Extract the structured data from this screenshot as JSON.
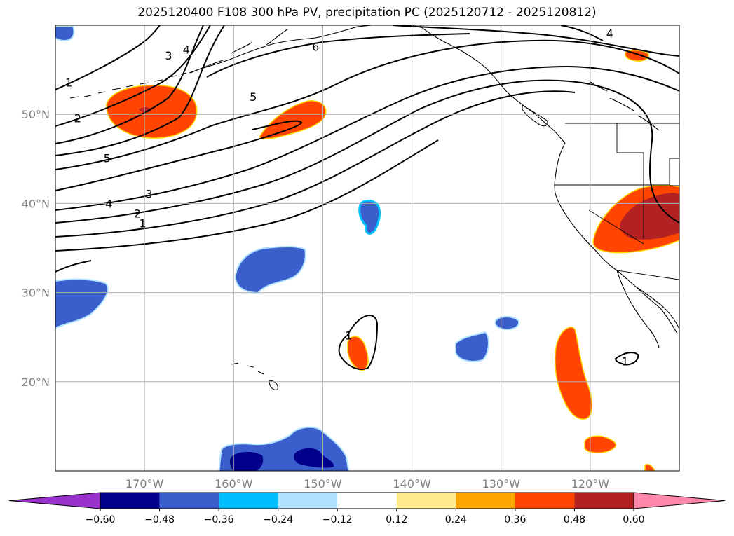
{
  "title": "2025120400 F108 300 hPa PV, precipitation PC (2025120712 - 2025120812)",
  "chart_data": {
    "type": "contour-map",
    "title": "2025120400 F108 300 hPa PV, precipitation PC (2025120712 - 2025120812)",
    "lon_range": [
      -180,
      -110
    ],
    "lat_range": [
      10,
      60
    ],
    "grid": true,
    "lon_ticks": [
      -170,
      -160,
      -150,
      -140,
      -130,
      -120
    ],
    "lon_tick_labels": [
      "170°W",
      "160°W",
      "150°W",
      "140°W",
      "130°W",
      "120°W"
    ],
    "lat_ticks": [
      20,
      30,
      40,
      50
    ],
    "lat_tick_labels": [
      "20°N",
      "30°N",
      "40°N",
      "50°N"
    ],
    "pv_contour_labels": [
      {
        "text": "1",
        "lon": -178.5,
        "lat": 53.6
      },
      {
        "text": "2",
        "lon": -177.5,
        "lat": 49.6
      },
      {
        "text": "3",
        "lon": -167.3,
        "lat": 56.6
      },
      {
        "text": "4",
        "lon": -165.3,
        "lat": 57.3
      },
      {
        "text": "5",
        "lon": -157.8,
        "lat": 52.0
      },
      {
        "text": "6",
        "lon": -150.8,
        "lat": 57.6
      },
      {
        "text": "4",
        "lon": -117.8,
        "lat": 59.1
      },
      {
        "text": "5",
        "lon": -174.2,
        "lat": 45.1
      },
      {
        "text": "4",
        "lon": -174.0,
        "lat": 40.0
      },
      {
        "text": "3",
        "lon": -169.5,
        "lat": 41.1
      },
      {
        "text": "2",
        "lon": -170.8,
        "lat": 38.9
      },
      {
        "text": "1",
        "lon": -170.2,
        "lat": 37.8
      },
      {
        "text": "1",
        "lon": -147.1,
        "lat": 25.2
      },
      {
        "text": "1",
        "lon": -116.1,
        "lat": 22.3
      }
    ],
    "colorbar": {
      "levels": [
        -0.6,
        -0.48,
        -0.36,
        -0.24,
        -0.12,
        0.12,
        0.24,
        0.36,
        0.48,
        0.6
      ],
      "tick_labels": [
        "−0.60",
        "−0.48",
        "−0.36",
        "−0.24",
        "−0.12",
        "0.12",
        "0.24",
        "0.36",
        "0.48",
        "0.60"
      ],
      "colors": [
        "#9932cc",
        "#00008b",
        "#3a5fcd",
        "#00bfff",
        "#b0e2ff",
        "#ffffff",
        "#ffeb8c",
        "#ffa500",
        "#ff4500",
        "#b22222",
        "#ff88aa"
      ],
      "extend": "both"
    },
    "precip_anomalies": [
      {
        "lon": -171.0,
        "lat": 50.3,
        "value": 0.4
      },
      {
        "lon": -156.0,
        "lat": 49.4,
        "value": 0.4
      },
      {
        "lon": -115.0,
        "lat": 38.0,
        "value": 0.5
      },
      {
        "lon": -145.8,
        "lat": 23.0,
        "value": 0.4
      },
      {
        "lon": -121.8,
        "lat": 20.5,
        "value": 0.4
      },
      {
        "lon": -120.5,
        "lat": 13.0,
        "value": 0.4
      },
      {
        "lon": -116.5,
        "lat": 57.0,
        "value": 0.4
      },
      {
        "lon": -159.0,
        "lat": 32.5,
        "value": -0.4
      },
      {
        "lon": -176.5,
        "lat": 29.5,
        "value": -0.4
      },
      {
        "lon": -134.2,
        "lat": 23.8,
        "value": -0.4
      },
      {
        "lon": -128.7,
        "lat": 26.6,
        "value": -0.4
      },
      {
        "lon": -143.6,
        "lat": 39.0,
        "value": -0.4
      },
      {
        "lon": -178.8,
        "lat": 59.1,
        "value": -0.4
      },
      {
        "lon": -153.0,
        "lat": 11.5,
        "value": -0.5
      }
    ]
  }
}
